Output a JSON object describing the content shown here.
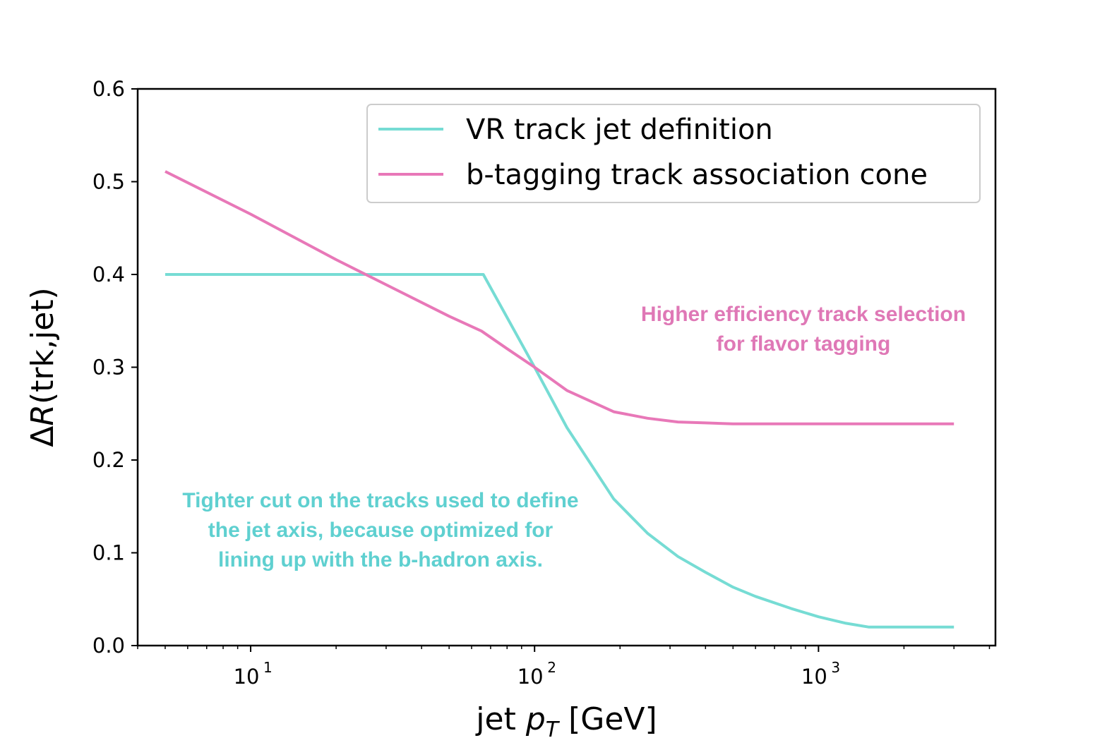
{
  "colors": {
    "vr": "#76dcd4",
    "btag": "#e878b8",
    "annotation_vr": "#5fd0d0",
    "annotation_btag": "#df78b6"
  },
  "chart_data": {
    "type": "line",
    "xscale": "log",
    "xlim": [
      4,
      4200
    ],
    "ylim": [
      0,
      0.6
    ],
    "xlabel": "jet p_T [GeV]",
    "ylabel": "ΔR(trk,jet)",
    "grid": false,
    "legend_position": "top-right",
    "x_tick_labels": [
      "10",
      "10",
      "10"
    ],
    "x_tick_exponents": [
      "1",
      "2",
      "3"
    ],
    "x_tick_values": [
      10,
      100,
      1000
    ],
    "y_ticks": [
      "0.0",
      "0.1",
      "0.2",
      "0.3",
      "0.4",
      "0.5",
      "0.6"
    ],
    "series": [
      {
        "name": "VR track jet definition",
        "color_key": "vr",
        "points": [
          [
            5,
            0.4
          ],
          [
            66,
            0.4
          ],
          [
            100,
            0.3
          ],
          [
            130,
            0.235
          ],
          [
            190,
            0.158
          ],
          [
            250,
            0.121
          ],
          [
            320,
            0.096
          ],
          [
            400,
            0.079
          ],
          [
            500,
            0.063
          ],
          [
            600,
            0.053
          ],
          [
            800,
            0.04
          ],
          [
            1000,
            0.031
          ],
          [
            1250,
            0.024
          ],
          [
            1500,
            0.02
          ],
          [
            3000,
            0.02
          ]
        ]
      },
      {
        "name": "b-tagging track association cone",
        "color_key": "btag",
        "points": [
          [
            5,
            0.511
          ],
          [
            10,
            0.465
          ],
          [
            20,
            0.416
          ],
          [
            30,
            0.389
          ],
          [
            50,
            0.355
          ],
          [
            65,
            0.339
          ],
          [
            80,
            0.32
          ],
          [
            100,
            0.3
          ],
          [
            130,
            0.275
          ],
          [
            190,
            0.252
          ],
          [
            250,
            0.245
          ],
          [
            320,
            0.241
          ],
          [
            400,
            0.24
          ],
          [
            500,
            0.239
          ],
          [
            700,
            0.239
          ],
          [
            1000,
            0.239
          ],
          [
            2000,
            0.239
          ],
          [
            3000,
            0.239
          ]
        ]
      }
    ],
    "annotations": [
      {
        "lines": [
          "Higher efficiency track selection",
          "for flavor tagging"
        ],
        "color_key": "annotation_btag"
      },
      {
        "lines": [
          "Tighter cut on the tracks used to define",
          "the jet axis, because optimized for",
          "lining up with the b-hadron axis."
        ],
        "color_key": "annotation_vr"
      }
    ]
  }
}
